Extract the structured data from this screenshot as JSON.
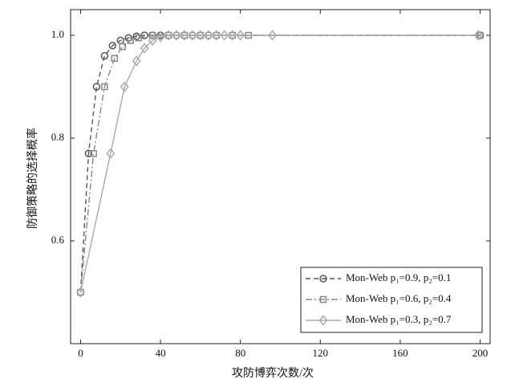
{
  "chart_data": {
    "type": "line",
    "x_label": "攻防博弈次数/次",
    "y_label": "防御策略的选择概率",
    "xlim": [
      -5,
      205
    ],
    "ylim": [
      0.4,
      1.05
    ],
    "xticks": [
      0,
      40,
      80,
      120,
      160,
      200
    ],
    "yticks": [
      0.6,
      0.8,
      {
        "value": 1,
        "label": "1.0"
      }
    ],
    "legend_position": "lower right",
    "series": [
      {
        "name": "Mon-Web  p₁=0.9, p₂=0.1",
        "color": "#555555",
        "dash": "6,4",
        "marker": "circle",
        "x": [
          0,
          4,
          8,
          12,
          16,
          20,
          24,
          28,
          32,
          36,
          40,
          48,
          56,
          64,
          200
        ],
        "values": [
          0.5,
          0.77,
          0.9,
          0.96,
          0.98,
          0.99,
          0.995,
          0.998,
          1.0,
          1.0,
          1.0,
          1.0,
          1.0,
          1.0,
          1.0
        ]
      },
      {
        "name": "Mon-Web  p₁=0.6, p₂=0.4",
        "color": "#888888",
        "dash": "8,3,2,3",
        "marker": "square",
        "x": [
          0,
          6.5,
          12,
          17,
          21,
          25,
          29,
          36,
          44,
          52,
          60,
          68,
          76,
          84,
          200
        ],
        "values": [
          0.5,
          0.77,
          0.9,
          0.955,
          0.978,
          0.99,
          0.995,
          1.0,
          1.0,
          1.0,
          1.0,
          1.0,
          1.0,
          1.0,
          1.0
        ]
      },
      {
        "name": "Mon-Web  p₁=0.3, p₂=0.7",
        "color": "#aaaaaa",
        "dash": "none",
        "marker": "diamond",
        "x": [
          0,
          15,
          22,
          28,
          32,
          36,
          40,
          44,
          48,
          52,
          56,
          60,
          64,
          68,
          72,
          76,
          80,
          96,
          199
        ],
        "values": [
          0.5,
          0.77,
          0.9,
          0.95,
          0.975,
          0.99,
          0.997,
          1.0,
          1.0,
          1.0,
          1.0,
          1.0,
          1.0,
          1.0,
          1.0,
          1.0,
          1.0,
          1.0,
          1.0
        ]
      }
    ]
  }
}
